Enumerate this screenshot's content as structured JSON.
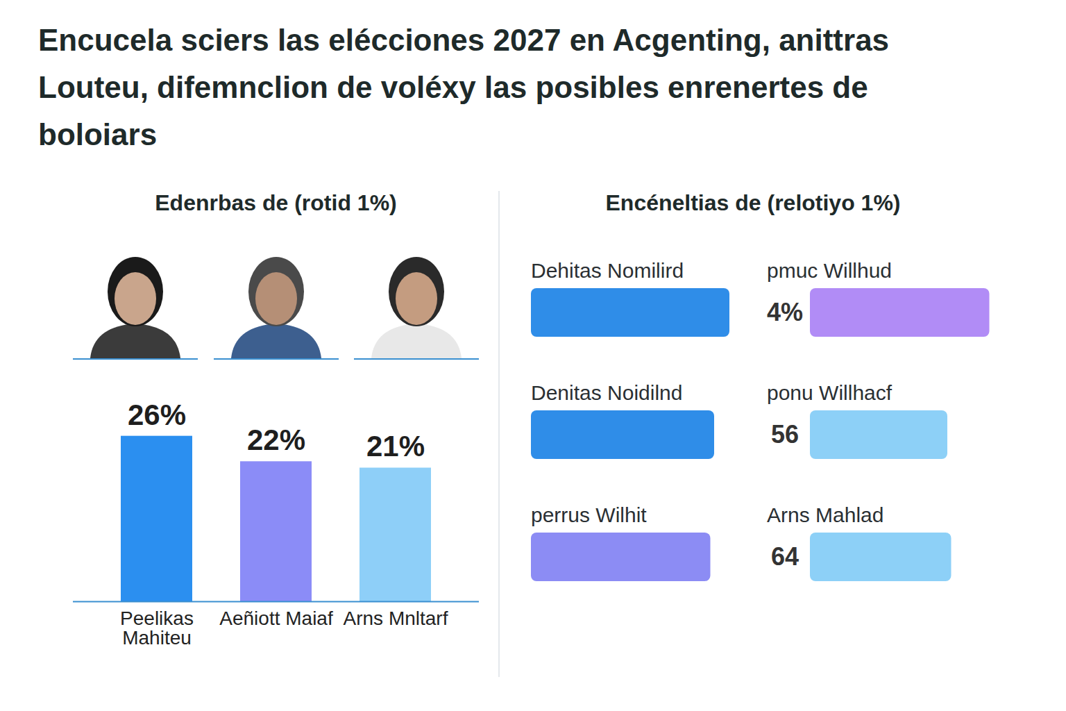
{
  "title": "Encucela sciers las elécciones 2027 en Acgenting, anittras Louteu, difemnclion de voléxy las posibles enrenertes de boloiars",
  "chart_data": [
    {
      "type": "bar",
      "title": "Edenrbas de (rotid 1%)",
      "categories": [
        "Peelikas Mahiteu",
        "Aeñiott Maiaf",
        "Arns Mnltarf"
      ],
      "values": [
        26,
        22,
        21
      ],
      "value_labels": [
        "26%",
        "22%",
        "21%"
      ],
      "colors": [
        "#2b8ff0",
        "#8b8cf7",
        "#8ecff8"
      ],
      "ylim": [
        0,
        30
      ],
      "data_labels": true,
      "tick_labels": "x"
    },
    {
      "type": "bar",
      "orientation": "horizontal",
      "title": "Encéneltias de (relotiyo 1%)",
      "left_names": [
        "Dehitas Nomilird",
        "Denitas Noidilnd",
        "perrus Wilhit"
      ],
      "right_names": [
        "pmuc Willhud",
        "ponu Willhacf",
        "Arns Mahlad"
      ],
      "left_values": [
        52,
        48,
        47
      ],
      "right_values": [
        47,
        36,
        37
      ],
      "left_colors": [
        "#2f8de8",
        "#2f8de8",
        "#8c8cf4"
      ],
      "right_colors": [
        "#b18cf6",
        "#8dd0f7",
        "#8dd0f7"
      ],
      "center_labels": [
        "4%",
        "56",
        "64"
      ],
      "xlim": [
        0,
        60
      ],
      "data_labels": true,
      "tick_labels": false
    }
  ]
}
